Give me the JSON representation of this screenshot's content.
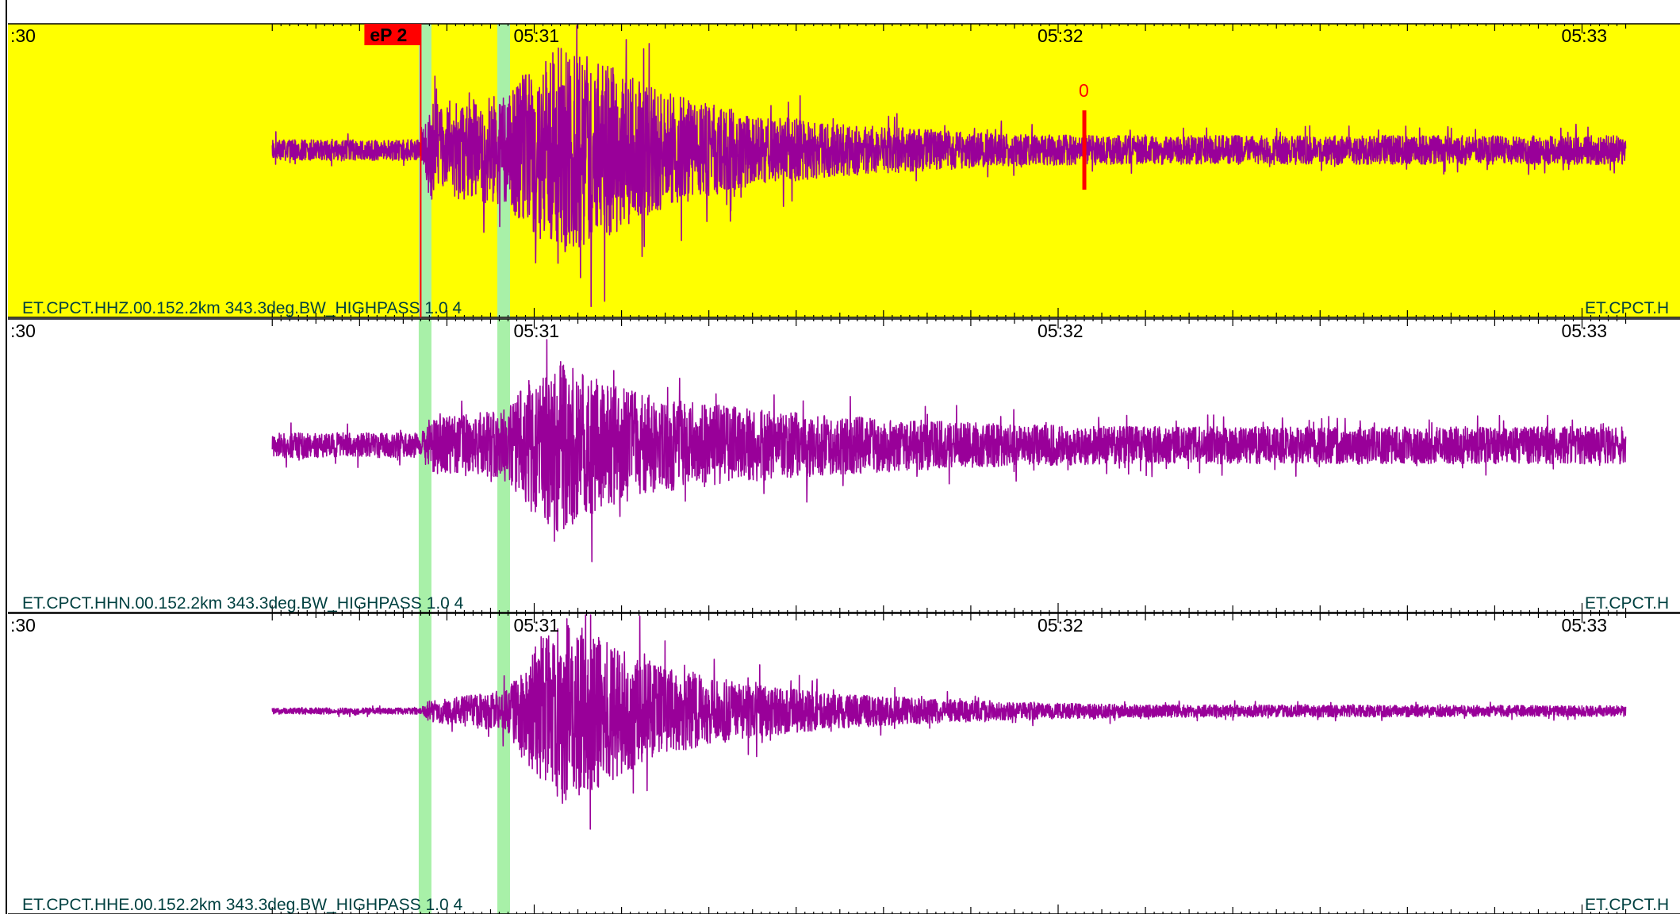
{
  "chart_data": {
    "type": "line",
    "x_range": [
      "05:30:30",
      "05:33:05"
    ],
    "x_tick_labels": [
      ":30",
      "05:31",
      "05:32",
      "05:33"
    ],
    "highlight_bands": [
      "05:30:47.5",
      "05:30:56.5"
    ],
    "grid": false,
    "panels": [
      {
        "label": "ET.CPCT.HHZ.00.152.2km 343.3deg.BW_HIGHPASS 1.0 4",
        "label_right": "ET.CPCT.H",
        "selected": true,
        "background": "#ffff00",
        "phase_pick": {
          "label": "eP 2",
          "time": "05:30:47"
        },
        "marker": {
          "label": "0",
          "time": "05:32:03"
        },
        "envelope": {
          "t_seconds_from_05_30_30": [
            0,
            17,
            18,
            27,
            29,
            33,
            38,
            45,
            55,
            65,
            85,
            100,
            155
          ],
          "relative_amplitude": [
            0.1,
            0.1,
            0.45,
            0.55,
            0.8,
            1.0,
            0.85,
            0.55,
            0.35,
            0.25,
            0.15,
            0.14,
            0.14
          ]
        }
      },
      {
        "label": "ET.CPCT.HHN.00.152.2km 343.3deg.BW_HIGHPASS 1.0 4",
        "label_right": "ET.CPCT.H",
        "selected": false,
        "background": "#ffffff",
        "envelope": {
          "t_seconds_from_05_30_30": [
            0,
            17,
            18,
            27,
            29,
            33,
            38,
            45,
            55,
            65,
            85,
            100,
            155
          ],
          "relative_amplitude": [
            0.12,
            0.12,
            0.25,
            0.35,
            0.6,
            0.85,
            0.6,
            0.45,
            0.35,
            0.28,
            0.2,
            0.18,
            0.18
          ]
        }
      },
      {
        "label": "ET.CPCT.HHE.00.152.2km 343.3deg.BW_HIGHPASS 1.0 4",
        "label_right": "ET.CPCT.H",
        "selected": false,
        "background": "#ffffff",
        "envelope": {
          "t_seconds_from_05_30_30": [
            0,
            17,
            18,
            27,
            29,
            33,
            38,
            45,
            55,
            65,
            85,
            100,
            155
          ],
          "relative_amplitude": [
            0.03,
            0.03,
            0.1,
            0.2,
            0.5,
            0.9,
            0.7,
            0.4,
            0.25,
            0.16,
            0.08,
            0.06,
            0.05
          ]
        }
      }
    ]
  },
  "colors": {
    "trace": "#990099",
    "band": "#a8f0a8",
    "pick": "#ff0000",
    "axis": "#000000",
    "label_bg": "#d6ecf0",
    "label_text": "#004040"
  }
}
